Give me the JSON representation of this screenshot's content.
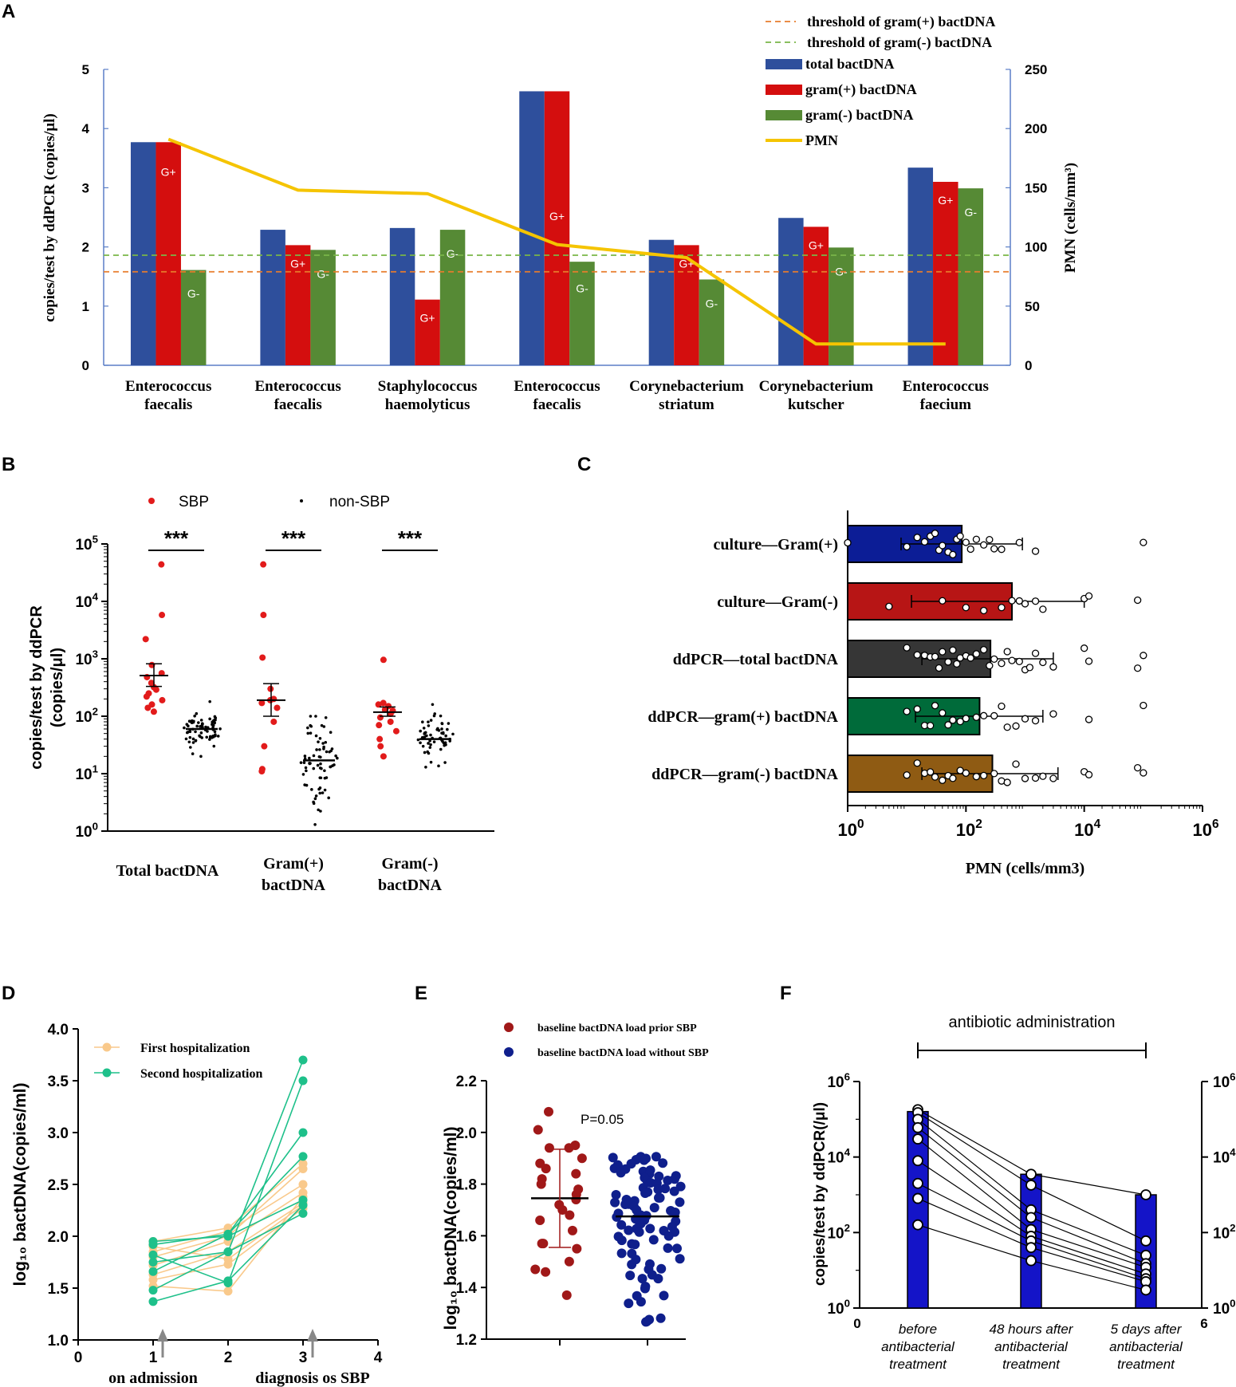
{
  "chart_data": [
    {
      "panel": "A",
      "type": "bar",
      "categories": [
        [
          "Enterococcus",
          "faecalis"
        ],
        [
          "Enterococcus",
          "faecalis"
        ],
        [
          "Staphylococcus",
          "haemolyticus"
        ],
        [
          "Enterococcus",
          "faecalis"
        ],
        [
          "Corynebacterium",
          "striatum"
        ],
        [
          "Corynebacterium",
          "kutscher"
        ],
        [
          "Enterococcus",
          "faecium"
        ]
      ],
      "series": [
        {
          "name": "total bactDNA",
          "color": "#2e4f9c",
          "values": [
            3.77,
            2.29,
            2.32,
            4.63,
            2.12,
            2.49,
            3.34
          ]
        },
        {
          "name": "gram(+) bactDNA",
          "color": "#d40e0e",
          "values": [
            3.77,
            2.03,
            1.11,
            4.63,
            2.03,
            2.34,
            3.1
          ],
          "bar_labels": [
            "G+",
            "G+",
            "G+",
            "G+",
            "G+",
            "G+",
            "G+"
          ]
        },
        {
          "name": "gram(-) bactDNA",
          "color": "#568a35",
          "values": [
            1.61,
            1.95,
            2.29,
            1.75,
            1.45,
            1.99,
            2.99
          ],
          "bar_labels": [
            "G-",
            "G-",
            "G-",
            "G-",
            "G-",
            "G-",
            "G-"
          ]
        }
      ],
      "pmn": {
        "name": "PMN",
        "color": "#f5c400",
        "values": [
          191,
          148,
          145,
          102,
          91,
          18,
          18
        ]
      },
      "thresholds": [
        {
          "name": "threshold of gram(+) bactDNA",
          "value": 1.58,
          "color": "#e87c2c"
        },
        {
          "name": "threshold of gram(-) bactDNA",
          "value": 1.86,
          "color": "#7ab648"
        }
      ],
      "ylabel": "copies/test by ddPCR (copies/μl)",
      "y2label": "PMN (cells/mm³)",
      "ylim": [
        0,
        5
      ],
      "y2lim": [
        0,
        250
      ],
      "yticks": [
        "0",
        "1",
        "2",
        "3",
        "4",
        "5"
      ],
      "y2ticks": [
        "0",
        "50",
        "100",
        "150",
        "200",
        "250"
      ]
    },
    {
      "panel": "B",
      "type": "scatter",
      "groups": [
        "Total bactDNA",
        [
          "Gram(+)",
          "bactDNA"
        ],
        [
          "Gram(-)",
          "bactDNA"
        ]
      ],
      "legend": [
        {
          "name": "SBP",
          "color": "#e21b1b"
        },
        {
          "name": "non-SBP",
          "color": "#000000"
        }
      ],
      "significance": [
        "***",
        "***",
        "***"
      ],
      "ylabel": [
        "copies/test by ddPCR",
        "(copies/μl)"
      ],
      "yscale": "log",
      "ylim": [
        1,
        100000
      ],
      "yticks": [
        {
          "base": "10",
          "exp": "0"
        },
        {
          "base": "10",
          "exp": "1"
        },
        {
          "base": "10",
          "exp": "2"
        },
        {
          "base": "10",
          "exp": "3"
        },
        {
          "base": "10",
          "exp": "4"
        },
        {
          "base": "10",
          "exp": "5"
        }
      ],
      "sbp": [
        {
          "group": 0,
          "values": [
            44000,
            5800,
            2200,
            780,
            560,
            480,
            380,
            320,
            290,
            250,
            220,
            190,
            160,
            140,
            120
          ],
          "mean": 510,
          "sem_low": 330,
          "sem_high": 820
        },
        {
          "group": 1,
          "values": [
            44000,
            5800,
            1050,
            300,
            200,
            190,
            170,
            140,
            80,
            30,
            12,
            11
          ],
          "mean": 190,
          "sem_low": 100,
          "sem_high": 370
        },
        {
          "group": 2,
          "values": [
            960,
            170,
            160,
            150,
            130,
            125,
            110,
            95,
            80,
            70,
            55,
            40,
            30,
            20
          ],
          "mean": 118,
          "sem_low": 100,
          "sem_high": 145
        }
      ],
      "non_sbp": [
        {
          "group": 0,
          "n": 70,
          "min": 20,
          "max": 180,
          "mean": 60
        },
        {
          "group": 1,
          "n": 70,
          "min": 1.3,
          "max": 100,
          "mean": 17
        },
        {
          "group": 2,
          "n": 60,
          "min": 13,
          "max": 160,
          "mean": 40
        }
      ]
    },
    {
      "panel": "C",
      "type": "bar",
      "orientation": "horizontal",
      "categories": [
        "culture—Gram(+)",
        "culture—Gram(-)",
        "ddPCR—total bactDNA",
        "ddPCR—gram(+) bactDNA",
        "ddPCR—gram(-) bactDNA"
      ],
      "colors": [
        "#0c1d96",
        "#b71515",
        "#363636",
        "#006b3a",
        "#8f5b13"
      ],
      "values": [
        85,
        600,
        260,
        170,
        280
      ],
      "err_low": [
        8,
        12,
        18,
        14,
        18
      ],
      "err_high": [
        900,
        10000,
        3000,
        2000,
        3600
      ],
      "points": [
        [
          1,
          10,
          15,
          20,
          25,
          30,
          35,
          40,
          50,
          60,
          70,
          80,
          100,
          120,
          150,
          200,
          250,
          300,
          400,
          800,
          1500,
          100000
        ],
        [
          5,
          40,
          100,
          200,
          400,
          600,
          800,
          1000,
          1500,
          2000,
          10000,
          12000,
          80000
        ],
        [
          10,
          15,
          20,
          25,
          30,
          35,
          40,
          50,
          60,
          70,
          80,
          100,
          120,
          150,
          200,
          250,
          300,
          400,
          500,
          600,
          800,
          1000,
          1200,
          1500,
          2000,
          3000,
          10000,
          12000,
          80000,
          100000
        ],
        [
          10,
          15,
          20,
          25,
          30,
          40,
          50,
          60,
          80,
          100,
          150,
          200,
          300,
          400,
          500,
          700,
          1000,
          1500,
          3000,
          12000,
          100000
        ],
        [
          10,
          15,
          20,
          25,
          30,
          40,
          50,
          60,
          80,
          100,
          150,
          200,
          300,
          400,
          500,
          700,
          1000,
          1500,
          2000,
          3000,
          10000,
          12000,
          80000,
          100000
        ]
      ],
      "xlabel": "PMN (cells/mm3)",
      "xscale": "log",
      "xlim": [
        1,
        1000000
      ],
      "xticks": [
        {
          "base": "10",
          "exp": "0"
        },
        {
          "base": "10",
          "exp": "2"
        },
        {
          "base": "10",
          "exp": "4"
        },
        {
          "base": "10",
          "exp": "6"
        }
      ]
    },
    {
      "panel": "D",
      "type": "line",
      "legend": [
        {
          "name": "First hospitalization",
          "color": "#f9c98b"
        },
        {
          "name": "Second hospitalization",
          "color": "#1ec08a"
        }
      ],
      "first": [
        [
          1.52,
          1.47,
          2.38
        ],
        [
          1.58,
          1.73,
          2.27
        ],
        [
          1.63,
          1.85,
          2.32
        ],
        [
          1.72,
          1.95,
          2.42
        ],
        [
          1.8,
          2.0,
          2.65
        ],
        [
          1.85,
          2.05,
          2.5
        ],
        [
          1.9,
          1.78,
          2.3
        ],
        [
          1.95,
          2.08,
          2.7
        ]
      ],
      "second": [
        [
          1.37,
          1.57,
          2.3
        ],
        [
          1.48,
          1.85,
          2.22
        ],
        [
          1.66,
          2.02,
          2.77
        ],
        [
          1.75,
          1.85,
          3.7
        ],
        [
          1.82,
          1.55,
          3.5
        ],
        [
          1.92,
          2.02,
          3.0
        ],
        [
          1.95,
          2.0,
          2.35
        ]
      ],
      "ylabel": "log₁₀ bactDNA(copies/ml)",
      "xlim": [
        0,
        4
      ],
      "ylim": [
        1.0,
        4.0
      ],
      "xticks": [
        "0",
        "1",
        "2",
        "3",
        "4"
      ],
      "yticks": [
        "1.0",
        "1.5",
        "2.0",
        "2.5",
        "3.0",
        "3.5",
        "4.0"
      ],
      "annotations": [
        "on admission",
        "diagnosis os SBP"
      ]
    },
    {
      "panel": "E",
      "type": "scatter",
      "legend": [
        {
          "name": "baseline bactDNA load prior SBP",
          "color": "#a01818"
        },
        {
          "name": "baseline bactDNA load without SBP",
          "color": "#0f1f8c"
        }
      ],
      "groups": [
        {
          "values": [
            2.08,
            2.01,
            1.95,
            1.94,
            1.94,
            1.9,
            1.88,
            1.86,
            1.84,
            1.82,
            1.8,
            1.78,
            1.76,
            1.74,
            1.72,
            1.7,
            1.68,
            1.66,
            1.62,
            1.57,
            1.57,
            1.55,
            1.5,
            1.47,
            1.46,
            1.37
          ],
          "mean": 1.745,
          "sd": 0.19
        },
        {
          "values": [
            1.91,
            1.9,
            1.89,
            1.88,
            1.87,
            1.86,
            1.85,
            1.84,
            1.83,
            1.82,
            1.81,
            1.8,
            1.79,
            1.78,
            1.77,
            1.76,
            1.75,
            1.74,
            1.73,
            1.72,
            1.71,
            1.7,
            1.69,
            1.68,
            1.67,
            1.66,
            1.65,
            1.64,
            1.63,
            1.62,
            1.61,
            1.6,
            1.58,
            1.57,
            1.55,
            1.53,
            1.51,
            1.49,
            1.47,
            1.45,
            1.43,
            1.4,
            1.37,
            1.34,
            1.28,
            1.27
          ],
          "mean": 1.675
        }
      ],
      "pvalue": "P=0.05",
      "ylabel": "log₁₀ bactDNA(copies/ml)",
      "ylim": [
        1.2,
        2.2
      ],
      "yticks": [
        "1.2",
        "1.4",
        "1.6",
        "1.8",
        "2.0",
        "2.2"
      ]
    },
    {
      "panel": "F",
      "type": "bar",
      "categories": [
        [
          "before",
          "antibacterial",
          "treatment"
        ],
        [
          "48 hours after",
          "antibacterial",
          "treatment"
        ],
        [
          "5 days after",
          "antibacterial",
          "treatment"
        ]
      ],
      "values": [
        160000,
        3500,
        1000
      ],
      "color": "#1414c8",
      "paired": [
        [
          180000,
          3500,
          1000
        ],
        [
          150000,
          1800,
          60
        ],
        [
          100000,
          400,
          25
        ],
        [
          60000,
          250,
          15
        ],
        [
          30000,
          120,
          12
        ],
        [
          8000,
          80,
          8
        ],
        [
          2000,
          60,
          6
        ],
        [
          800,
          40,
          5
        ],
        [
          160,
          18,
          3
        ]
      ],
      "annotation": "antibiotic administration",
      "ylabel": "copies/test by ddPCR(/μl)",
      "yscale": "log",
      "ylim": [
        1,
        1000000
      ],
      "xlim": [
        0,
        6
      ],
      "xticks": [
        "0",
        "6"
      ],
      "yticks": [
        {
          "base": "10",
          "exp": "0"
        },
        {
          "base": "10",
          "exp": "2"
        },
        {
          "base": "10",
          "exp": "4"
        },
        {
          "base": "10",
          "exp": "6"
        }
      ]
    }
  ],
  "panel_labels": [
    "A",
    "B",
    "C",
    "D",
    "E",
    "F"
  ]
}
